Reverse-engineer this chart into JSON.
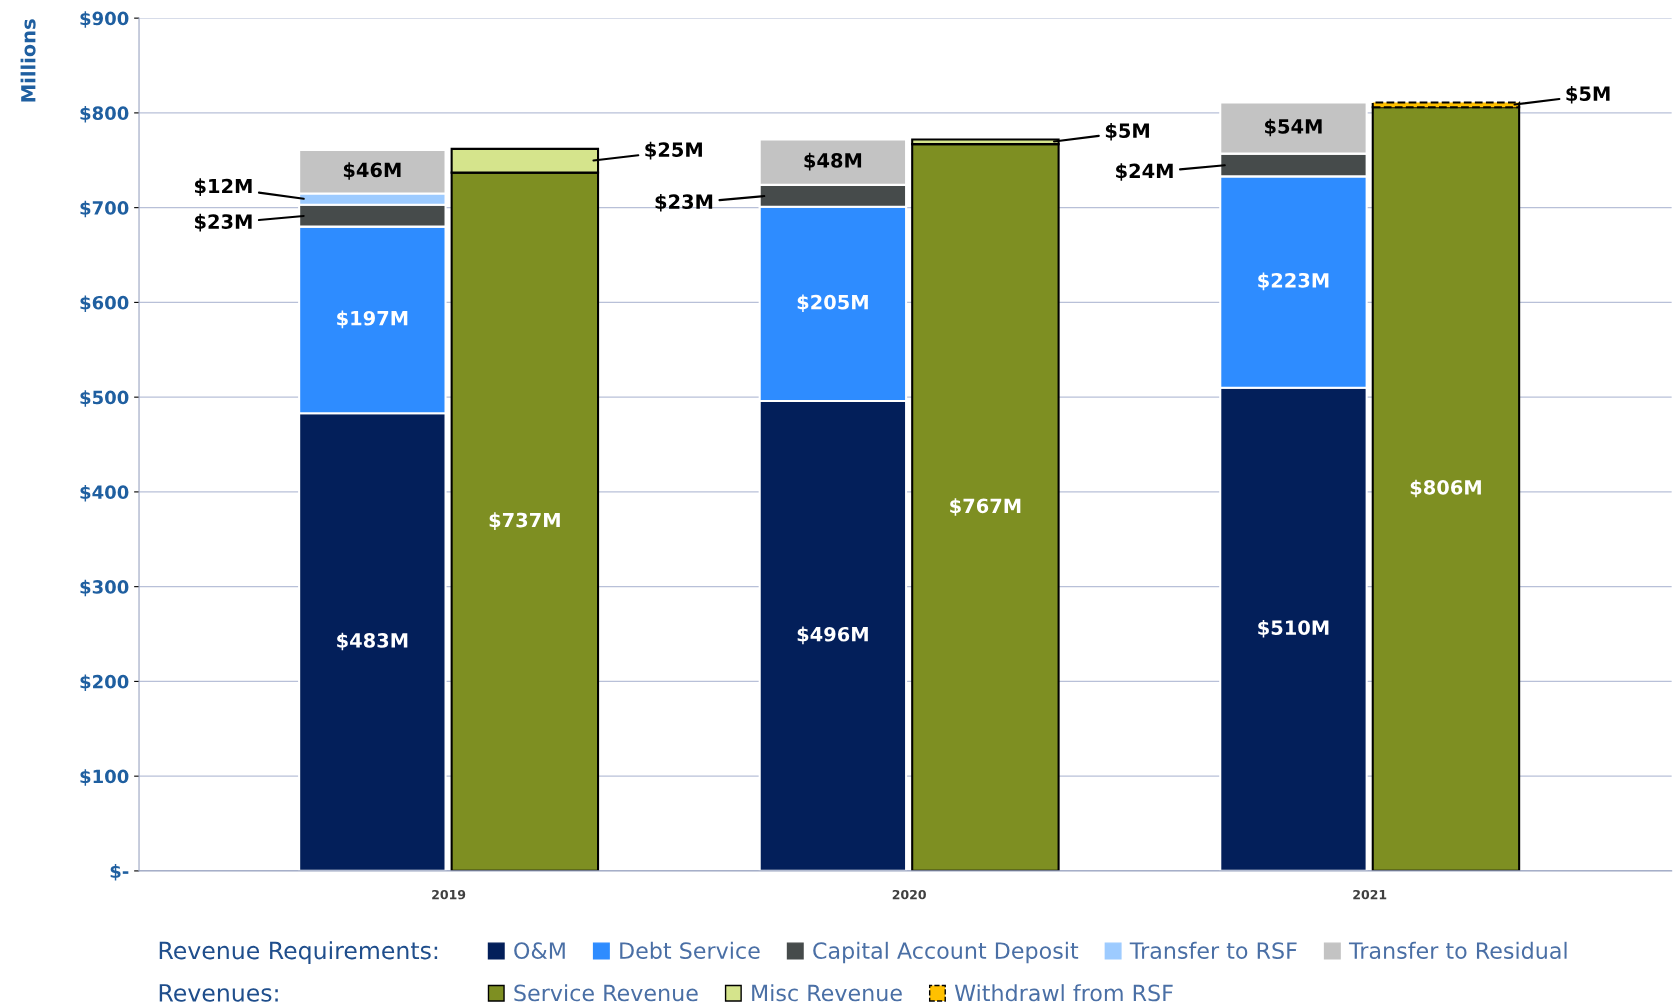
{
  "chart_data": {
    "type": "bar",
    "stacked": true,
    "categories": [
      null,
      null,
      null,
      null,
      null,
      null
    ],
    "annotations": [
      "2019",
      "2020",
      "2021"
    ],
    "ylabel": "Millions",
    "ylim": [
      0,
      900
    ],
    "yticks": [
      {
        "value": 0,
        "label": "$-"
      },
      {
        "value": 100,
        "label": "$100"
      },
      {
        "value": 200,
        "label": "$200"
      },
      {
        "value": 300,
        "label": "$300"
      },
      {
        "value": 400,
        "label": "$400"
      },
      {
        "value": 500,
        "label": "$500"
      },
      {
        "value": 600,
        "label": "$600"
      },
      {
        "value": 700,
        "label": "$700"
      },
      {
        "value": 800,
        "label": "$800"
      },
      {
        "value": 900,
        "label": "$900"
      }
    ],
    "grid": "y",
    "legend": "bottom",
    "legend_title": [
      "Revenue Requirements:",
      "Revenues:"
    ],
    "series": [
      {
        "name": "O&M",
        "color": "#031f5a",
        "values": [
          483,
          null,
          496,
          null,
          510,
          null
        ],
        "value_labels": [
          "$483M",
          null,
          "$496M",
          null,
          "$510M",
          null
        ]
      },
      {
        "name": "Debt Service",
        "color": "#2e8cff",
        "values": [
          197,
          null,
          205,
          null,
          223,
          null
        ],
        "value_labels": [
          "$197M",
          null,
          "$205M",
          null,
          "$223M",
          null
        ]
      },
      {
        "name": "Capital Account Deposit",
        "color": "#464b4b",
        "values": [
          23,
          null,
          23,
          null,
          24,
          null
        ],
        "value_labels": [
          "$23M",
          null,
          "$23M",
          null,
          "$24M",
          null
        ]
      },
      {
        "name": "Transfer to RSF",
        "color": "#9dcbff",
        "values": [
          12,
          null,
          null,
          null,
          null,
          null
        ],
        "value_labels": [
          "$12M",
          null,
          null,
          null,
          null,
          null
        ]
      },
      {
        "name": "Transfer to Residual",
        "color": "#c3c3c3",
        "values": [
          46,
          null,
          48,
          null,
          54,
          null
        ],
        "value_labels": [
          "$46M",
          null,
          "$48M",
          null,
          "$54M",
          null
        ]
      },
      {
        "name": "Service Revenue",
        "color": "#7e8f22",
        "values": [
          null,
          737,
          null,
          767,
          null,
          806
        ],
        "value_labels": [
          null,
          "$737M",
          null,
          "$767M",
          null,
          "$806M"
        ]
      },
      {
        "name": "Misc Revenue",
        "color": "#d5e48c",
        "values": [
          null,
          25,
          null,
          5,
          null,
          null
        ],
        "value_labels": [
          null,
          "$25M",
          null,
          "$5M",
          null,
          null
        ]
      },
      {
        "name": "Withdrawl from RSF",
        "color": "#ffc000",
        "line_style": "dashed",
        "values": [
          null,
          null,
          null,
          null,
          null,
          5
        ],
        "value_labels": [
          null,
          null,
          null,
          null,
          null,
          "$5M"
        ]
      }
    ]
  }
}
